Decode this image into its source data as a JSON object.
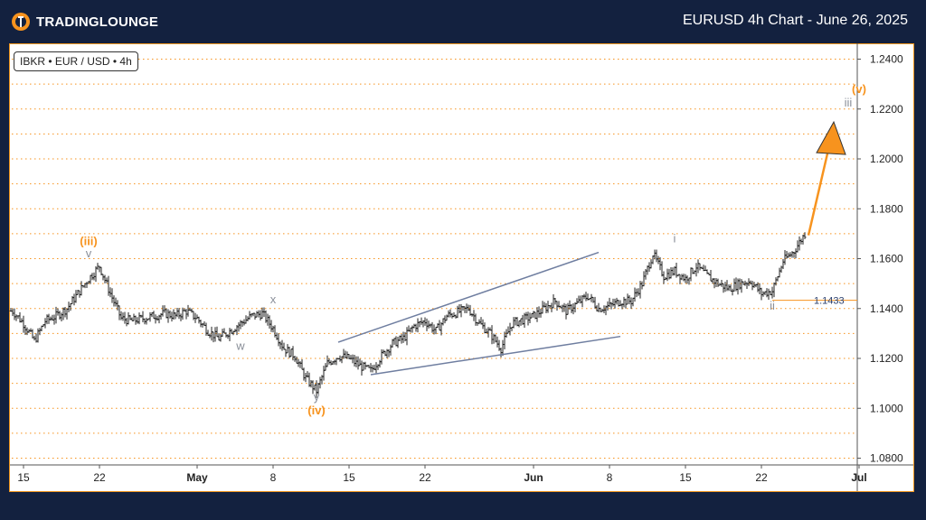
{
  "header": {
    "brand": "TradingLounge",
    "brand_display": "TRADINGLOUNGE",
    "title": "EURUSD 4h Chart - June 26, 2025"
  },
  "symbol_label": "IBKR • EUR / USD • 4h",
  "colors": {
    "background": "#13213f",
    "orange": "#f7931e",
    "wave_grey": "#8a8f99",
    "channel": "#6f7ea0",
    "candle": "#222222",
    "grid": "#f7931e"
  },
  "chart_data": {
    "type": "candlestick",
    "title": "",
    "y_axis": {
      "range": [
        1.075,
        1.2475
      ],
      "ticks": [
        "1.0800",
        "1.1000",
        "1.1200",
        "1.1400",
        "1.1600",
        "1.1800",
        "1.2000",
        "1.2200",
        "1.2400"
      ],
      "gridlines": [
        1.08,
        1.09,
        1.1,
        1.11,
        1.12,
        1.13,
        1.14,
        1.15,
        1.16,
        1.17,
        1.18,
        1.19,
        1.2,
        1.21,
        1.22,
        1.23,
        1.24
      ],
      "position": "right"
    },
    "x_axis": {
      "range_days": [
        "2025-04-14",
        "2025-07-02"
      ],
      "ticks": [
        {
          "date": "2025-04-15",
          "label": "15",
          "bold": false
        },
        {
          "date": "2025-04-22",
          "label": "22",
          "bold": false
        },
        {
          "date": "2025-05-01",
          "label": "May",
          "bold": true
        },
        {
          "date": "2025-05-08",
          "label": "8",
          "bold": false
        },
        {
          "date": "2025-05-15",
          "label": "15",
          "bold": false
        },
        {
          "date": "2025-05-22",
          "label": "22",
          "bold": false
        },
        {
          "date": "2025-06-01",
          "label": "Jun",
          "bold": true
        },
        {
          "date": "2025-06-08",
          "label": "8",
          "bold": false
        },
        {
          "date": "2025-06-15",
          "label": "15",
          "bold": false
        },
        {
          "date": "2025-06-22",
          "label": "22",
          "bold": false
        },
        {
          "date": "2025-07-01",
          "label": "Jul",
          "bold": true
        }
      ]
    },
    "price_path": [
      [
        "2025-04-14",
        1.139
      ],
      [
        "2025-04-15",
        1.134
      ],
      [
        "2025-04-16",
        1.127
      ],
      [
        "2025-04-17",
        1.135
      ],
      [
        "2025-04-18",
        1.137
      ],
      [
        "2025-04-19",
        1.14
      ],
      [
        "2025-04-21",
        1.152
      ],
      [
        "2025-04-22",
        1.157
      ],
      [
        "2025-04-23",
        1.146
      ],
      [
        "2025-04-24",
        1.136
      ],
      [
        "2025-04-25",
        1.135
      ],
      [
        "2025-04-28",
        1.138
      ],
      [
        "2025-04-29",
        1.137
      ],
      [
        "2025-04-30",
        1.139
      ],
      [
        "2025-05-01",
        1.136
      ],
      [
        "2025-05-02",
        1.131
      ],
      [
        "2025-05-03",
        1.128
      ],
      [
        "2025-05-05",
        1.134
      ],
      [
        "2025-05-06",
        1.137
      ],
      [
        "2025-05-07",
        1.138
      ],
      [
        "2025-05-08",
        1.132
      ],
      [
        "2025-05-09",
        1.124
      ],
      [
        "2025-05-10",
        1.121
      ],
      [
        "2025-05-11",
        1.112
      ],
      [
        "2025-05-12",
        1.107
      ],
      [
        "2025-05-13",
        1.118
      ],
      [
        "2025-05-14",
        1.121
      ],
      [
        "2025-05-15",
        1.12
      ],
      [
        "2025-05-16",
        1.117
      ],
      [
        "2025-05-17",
        1.115
      ],
      [
        "2025-05-18",
        1.121
      ],
      [
        "2025-05-19",
        1.126
      ],
      [
        "2025-05-20",
        1.128
      ],
      [
        "2025-05-21",
        1.133
      ],
      [
        "2025-05-22",
        1.135
      ],
      [
        "2025-05-23",
        1.131
      ],
      [
        "2025-05-24",
        1.137
      ],
      [
        "2025-05-26",
        1.14
      ],
      [
        "2025-05-27",
        1.134
      ],
      [
        "2025-05-28",
        1.13
      ],
      [
        "2025-05-29",
        1.124
      ],
      [
        "2025-05-30",
        1.134
      ],
      [
        "2025-06-01",
        1.137
      ],
      [
        "2025-06-02",
        1.14
      ],
      [
        "2025-06-03",
        1.143
      ],
      [
        "2025-06-04",
        1.139
      ],
      [
        "2025-06-05",
        1.142
      ],
      [
        "2025-06-06",
        1.145
      ],
      [
        "2025-06-07",
        1.14
      ],
      [
        "2025-06-08",
        1.141
      ],
      [
        "2025-06-09",
        1.143
      ],
      [
        "2025-06-10",
        1.143
      ],
      [
        "2025-06-11",
        1.15
      ],
      [
        "2025-06-12",
        1.162
      ],
      [
        "2025-06-13",
        1.153
      ],
      [
        "2025-06-14",
        1.155
      ],
      [
        "2025-06-15",
        1.152
      ],
      [
        "2025-06-16",
        1.157
      ],
      [
        "2025-06-17",
        1.153
      ],
      [
        "2025-06-18",
        1.15
      ],
      [
        "2025-06-19",
        1.148
      ],
      [
        "2025-06-20",
        1.15
      ],
      [
        "2025-06-21",
        1.151
      ],
      [
        "2025-06-22",
        1.146
      ],
      [
        "2025-06-23",
        1.147
      ],
      [
        "2025-06-24",
        1.159
      ],
      [
        "2025-06-25",
        1.163
      ],
      [
        "2025-06-26",
        1.17
      ]
    ],
    "support_level": {
      "value": 1.1433,
      "label": "1.1433",
      "from": "2025-06-23",
      "to": "2025-07-02"
    },
    "channel_lines": [
      {
        "from": [
          "2025-05-14",
          1.1265
        ],
        "to": [
          "2025-06-07",
          1.1625
        ]
      },
      {
        "from": [
          "2025-05-17",
          1.1135
        ],
        "to": [
          "2025-06-09",
          1.1288
        ]
      }
    ],
    "projection_arrow": {
      "from": [
        "2025-06-27",
        1.169
      ],
      "to": [
        "2025-06-29",
        1.209
      ]
    },
    "wave_labels": [
      {
        "text": "(iii)",
        "date": "2025-04-21",
        "price": 1.1655,
        "color": "orange"
      },
      {
        "text": "v",
        "date": "2025-04-21",
        "price": 1.1605,
        "color": "grey"
      },
      {
        "text": "w",
        "date": "2025-05-05",
        "price": 1.1235,
        "color": "grey"
      },
      {
        "text": "x",
        "date": "2025-05-08",
        "price": 1.142,
        "color": "grey"
      },
      {
        "text": "y",
        "date": "2025-05-12",
        "price": 1.103,
        "color": "grey"
      },
      {
        "text": "(iv)",
        "date": "2025-05-12",
        "price": 1.0975,
        "color": "orange"
      },
      {
        "text": "i",
        "date": "2025-06-14",
        "price": 1.1665,
        "color": "grey"
      },
      {
        "text": "ii",
        "date": "2025-06-23",
        "price": 1.1395,
        "color": "grey"
      },
      {
        "text": "(v)",
        "date": "2025-07-01",
        "price": 1.2265,
        "color": "orange"
      },
      {
        "text": "iii",
        "date": "2025-06-30",
        "price": 1.221,
        "color": "grey"
      }
    ]
  }
}
